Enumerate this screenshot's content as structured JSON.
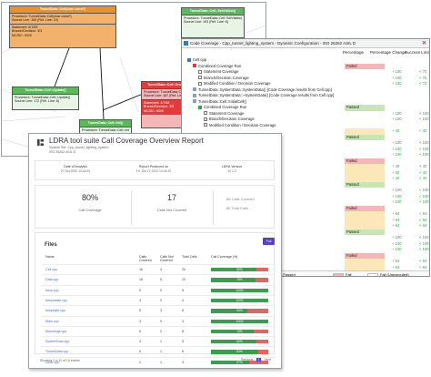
{
  "graph": {
    "nodes": [
      {
        "id": "n1",
        "header": "TunnelData::Cell(char const*)",
        "lines": [
          "Procedure: TunnelData::Cell(char const*)",
          "Source Line: 169 (Ref. Line: 10)"
        ],
        "stats": [
          "Statement: 6/7/89",
          "Branch/Decision: 3/3",
          "MC/DC: 0/0/0"
        ],
        "color": "#e8912d"
      },
      {
        "id": "n2",
        "header": "TunnelData::Cell::SetVisible()",
        "lines": [
          "Procedure: TunnelData::Cell::SetVisible()",
          "Source Line: 193 (Ref. Line: 6)"
        ],
        "stats": [],
        "color": "#5cb85c"
      },
      {
        "id": "n3",
        "header": "TunnelData::Cell::Update()",
        "lines": [
          "Procedure: TunnelData::Cell::Update()",
          "Source Line: 172 (Ref. Line: 8)"
        ],
        "stats": [],
        "color": "#5cb85c"
      },
      {
        "id": "n4",
        "header": "TunnelData::Cell::Draw()",
        "lines": [
          "Procedure: TunnelData::Cell::Draw()",
          "Source Line: 187 (Ref. Line: 3)"
        ],
        "stats": [
          "Statement: 4/7/58",
          "Branch/Decision: 3/5",
          "MC/DC: 0/0/0"
        ],
        "color": "#e03c3c"
      },
      {
        "id": "n5",
        "header": "TunnelData::Cell::Init()",
        "lines": [
          "Procedure: TunnelData::Cell::Init()"
        ],
        "stats": [],
        "color": "#5cb85c"
      }
    ]
  },
  "tree": {
    "title": "Code Coverage - Cpp_tunnel_lighting_system - Dynamic Configuration - ISO 26262 ASIL D",
    "columns": {
      "percentage": "Percentage",
      "change": "Percentage Change",
      "limit": "Success Limit"
    },
    "status_colors": {
      "failed": "#f4b6b6",
      "passed": "#c6e6b5",
      "warn": "#fbe7b8"
    },
    "rows": [
      {
        "indent": 0,
        "text": "Cell.cpp",
        "icon": "file",
        "status": "",
        "gain": "",
        "num": ""
      },
      {
        "indent": 1,
        "text": "Combined Coverage Run",
        "icon": "red",
        "status": "Failed",
        "gain": "",
        "num": ""
      },
      {
        "indent": 2,
        "text": "Statement Coverage",
        "icon": "check",
        "status": "",
        "gain": "+ 100",
        "num": "< 70"
      },
      {
        "indent": 2,
        "text": "Branch/Decision Coverage",
        "icon": "check",
        "status": "",
        "gain": "+ 100",
        "num": "< 70"
      },
      {
        "indent": 2,
        "text": "Modified Condition / Decision Coverage",
        "icon": "check",
        "status": "",
        "gain": "+ 100",
        "num": "< 70"
      },
      {
        "indent": 1,
        "text": "TunnelData::SystemData::SystemData() [Code Coverage results from Cell.cpp]",
        "icon": "plain",
        "status": "",
        "gain": "",
        "num": ""
      },
      {
        "indent": 1,
        "text": "TunnelData::SystemData::~SystemData() [Code Coverage results from Cell.cpp]",
        "icon": "plain",
        "status": "",
        "gain": "",
        "num": ""
      },
      {
        "indent": 1,
        "text": "TunnelData::Cell::InitialCell()",
        "icon": "plain",
        "status": "",
        "gain": "",
        "num": ""
      },
      {
        "indent": 2,
        "text": "Combined Coverage Run",
        "icon": "green",
        "status": "Passed",
        "gain": "",
        "num": ""
      },
      {
        "indent": 3,
        "text": "Statement Coverage",
        "icon": "check",
        "status": "",
        "gain": "+ 100",
        "num": "< 100"
      },
      {
        "indent": 3,
        "text": "Branch/Decision Coverage",
        "icon": "check",
        "status": "",
        "gain": "+ 100",
        "num": "< 100"
      },
      {
        "indent": 3,
        "text": "Modified Condition / Decision Coverage",
        "icon": "check",
        "status": "",
        "gain": "",
        "num": ""
      },
      {
        "indent": 1,
        "text": "",
        "icon": "none",
        "status": "",
        "gain": "+ 40",
        "num": "< 40"
      },
      {
        "indent": 1,
        "text": "",
        "icon": "none",
        "status": "Passed",
        "gain": "",
        "num": ""
      },
      {
        "indent": 1,
        "text": "",
        "icon": "none",
        "status": "",
        "gain": "+ 100",
        "num": "< 100"
      },
      {
        "indent": 1,
        "text": "",
        "icon": "none",
        "status": "",
        "gain": "+ 100",
        "num": "< 100"
      },
      {
        "indent": 1,
        "text": "",
        "icon": "none",
        "status": "",
        "gain": "+ 100",
        "num": "< 100"
      },
      {
        "indent": 1,
        "text": "",
        "icon": "none",
        "status": "Failed",
        "gain": "",
        "num": ""
      },
      {
        "indent": 1,
        "text": "",
        "icon": "none",
        "status": "",
        "gain": "+ 40",
        "num": "< 40"
      },
      {
        "indent": 1,
        "text": "",
        "icon": "none",
        "status": "",
        "gain": "+ 40",
        "num": "< 40"
      },
      {
        "indent": 1,
        "text": "",
        "icon": "none",
        "status": "",
        "gain": "+ 40",
        "num": "< 40"
      },
      {
        "indent": 1,
        "text": "",
        "icon": "none",
        "status": "Passed",
        "gain": "",
        "num": ""
      },
      {
        "indent": 1,
        "text": "",
        "icon": "none",
        "status": "",
        "gain": "+ 100",
        "num": "< 100"
      },
      {
        "indent": 1,
        "text": "",
        "icon": "none",
        "status": "",
        "gain": "+ 100",
        "num": "< 100"
      },
      {
        "indent": 1,
        "text": "",
        "icon": "none",
        "status": "",
        "gain": "+ 100",
        "num": "< 100"
      },
      {
        "indent": 1,
        "text": "",
        "icon": "none",
        "status": "Failed",
        "gain": "",
        "num": ""
      },
      {
        "indent": 1,
        "text": "",
        "icon": "none",
        "status": "",
        "gain": "+ 64",
        "num": "< 64"
      },
      {
        "indent": 1,
        "text": "",
        "icon": "none",
        "status": "",
        "gain": "+ 64",
        "num": "< 64"
      },
      {
        "indent": 1,
        "text": "",
        "icon": "none",
        "status": "",
        "gain": "+ 64",
        "num": "< 64"
      },
      {
        "indent": 1,
        "text": "",
        "icon": "none",
        "status": "Passed",
        "gain": "",
        "num": ""
      },
      {
        "indent": 1,
        "text": "",
        "icon": "none",
        "status": "",
        "gain": "+ 100",
        "num": "< 100"
      },
      {
        "indent": 1,
        "text": "",
        "icon": "none",
        "status": "",
        "gain": "+ 100",
        "num": "< 100"
      },
      {
        "indent": 1,
        "text": "",
        "icon": "none",
        "status": "",
        "gain": "+ 100",
        "num": "< 100"
      },
      {
        "indent": 1,
        "text": "",
        "icon": "none",
        "status": "Failed",
        "gain": "",
        "num": ""
      },
      {
        "indent": 1,
        "text": "",
        "icon": "none",
        "status": "",
        "gain": "+ 64",
        "num": "< 64"
      },
      {
        "indent": 1,
        "text": "",
        "icon": "none",
        "status": "",
        "gain": "+ 64",
        "num": "< 64"
      }
    ],
    "legend": [
      {
        "label": "Passed",
        "color": "#c6e6b5"
      },
      {
        "label": "1 Metric Passed",
        "color": "#fbe7b8"
      },
      {
        "label": "Fail",
        "color": "#f4b6b6"
      },
      {
        "label": "Fail (Unexecuted)",
        "color": "#ffffff"
      }
    ]
  },
  "report": {
    "title": "LDRA tool suite Call Coverage Overview Report",
    "subtitle1": "System Set: Cpp_tunnel_lighting_system",
    "subtitle2": "ISO 26262 ASIL D",
    "meta": [
      {
        "label": "Date of Analysis",
        "value": "27 Oct 2022 13:44:22"
      },
      {
        "label": "Report Produced on",
        "value": "Fri, Oct 27 2022 13:44:22"
      },
      {
        "label": "LDRA Version",
        "value": "10.1.3"
      }
    ],
    "call_coverage_value": "80%",
    "call_coverage_label": "Call Coverage",
    "not_covered_value": "17",
    "not_covered_label": "Calls Not Covered",
    "calls_covered": "68 Calls Covered",
    "total_calls": "85 Total Calls",
    "files_title": "Files",
    "files_button": "Full",
    "table_headers": {
      "name": "Name",
      "covered": "Calls Covered",
      "not_covered": "Calls Not Covered",
      "total": "Total Calls",
      "pct": "Call Coverage (%)"
    },
    "colors": {
      "covered": "#3c9c52",
      "uncovered": "#e06666"
    },
    "files": [
      {
        "name": "Cell.cpp",
        "covered": "16",
        "not_covered": "4",
        "total": "20",
        "pct": 0.8,
        "pct_label": "80%"
      },
      {
        "name": "Data.cpp",
        "covered": "18",
        "not_covered": "5",
        "total": "23",
        "pct": 0.78,
        "pct_label": "78%"
      },
      {
        "name": "lamp.cpp",
        "covered": "5",
        "not_covered": "0",
        "total": "5",
        "pct": 1.0,
        "pct_label": "100%"
      },
      {
        "name": "lamprotate.cpp",
        "covered": "4",
        "not_covered": "0",
        "total": "4",
        "pct": 1.0,
        "pct_label": "100%"
      },
      {
        "name": "lampstyle.cpp",
        "covered": "5",
        "not_covered": "3",
        "total": "8",
        "pct": 0.63,
        "pct_label": "63%"
      },
      {
        "name": "Main.cpp",
        "covered": "3",
        "not_covered": "0",
        "total": "3",
        "pct": 1.0,
        "pct_label": "100%"
      },
      {
        "name": "Mountings.cpp",
        "covered": "6",
        "not_covered": "2",
        "total": "8",
        "pct": 0.75,
        "pct_label": "75%"
      },
      {
        "name": "SystemData.cpp",
        "covered": "4",
        "not_covered": "1",
        "total": "5",
        "pct": 0.8,
        "pct_label": "80%"
      },
      {
        "name": "TunnelData.cpp",
        "covered": "5",
        "not_covered": "1",
        "total": "6",
        "pct": 0.83,
        "pct_label": "83%"
      },
      {
        "name": "Zone.cpp",
        "covered": "2",
        "not_covered": "1",
        "total": "3",
        "pct": 0.67,
        "pct_label": "67%"
      }
    ],
    "footer": "Showing 1 to 10 of 10 entries",
    "pager": {
      "previous": "Previous",
      "page": "1",
      "next": "Next"
    }
  }
}
